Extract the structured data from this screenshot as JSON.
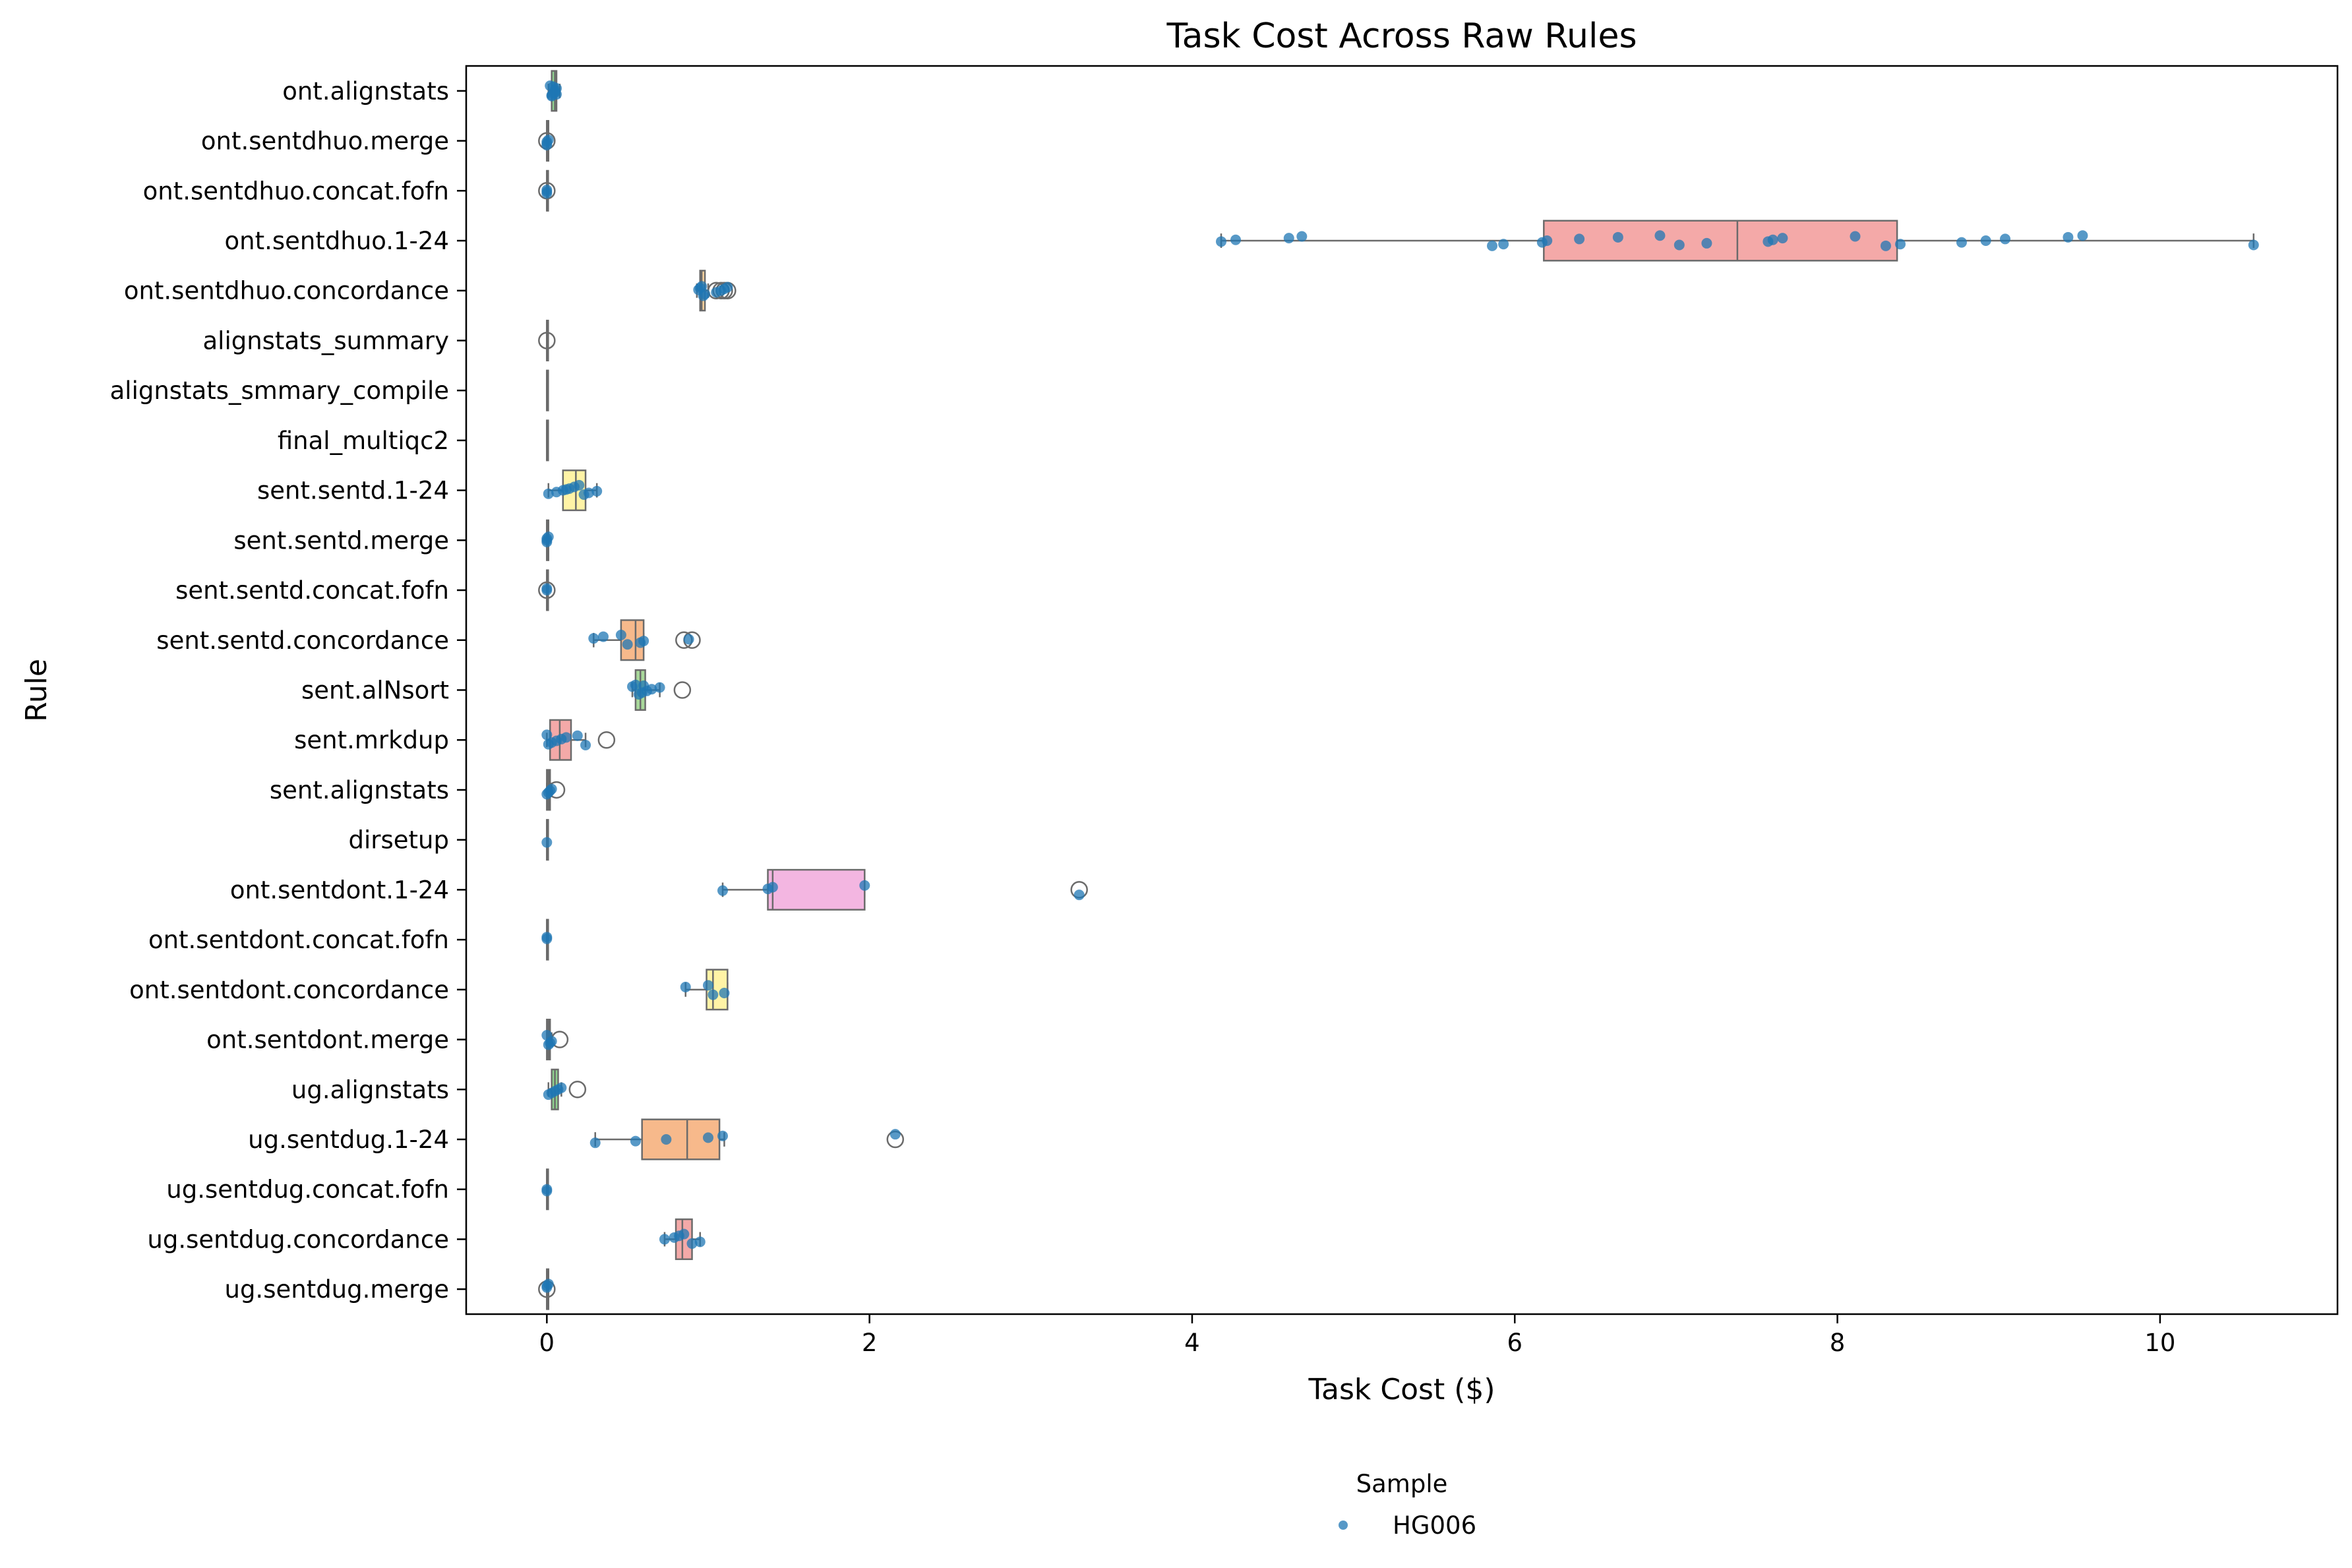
{
  "chart_data": {
    "type": "box",
    "title": "Task Cost Across Raw Rules",
    "xlabel": "Task Cost ($)",
    "ylabel": "Rule",
    "xlim": [
      -0.5,
      11.1
    ],
    "xticks": [
      0,
      2,
      4,
      6,
      8,
      10
    ],
    "grid": false,
    "legend": {
      "title": "Sample",
      "placement": "bottom-center",
      "entries": [
        {
          "name": "HG006",
          "color": "#1f77b4"
        }
      ]
    },
    "categories": [
      "ont.alignstats",
      "ont.sentdhuo.merge",
      "ont.sentdhuo.concat.fofn",
      "ont.sentdhuo.1-24",
      "ont.sentdhuo.concordance",
      "alignstats_summary",
      "alignstats_smmary_compile",
      "final_multiqc2",
      "sent.sentd.1-24",
      "sent.sentd.merge",
      "sent.sentd.concat.fofn",
      "sent.sentd.concordance",
      "sent.alNsort",
      "sent.mrkdup",
      "sent.alignstats",
      "dirsetup",
      "ont.sentdont.1-24",
      "ont.sentdont.concat.fofn",
      "ont.sentdont.concordance",
      "ont.sentdont.merge",
      "ug.alignstats",
      "ug.sentdug.1-24",
      "ug.sentdug.concat.fofn",
      "ug.sentdug.concordance",
      "ug.sentdug.merge"
    ],
    "boxes": [
      {
        "rule": "ont.alignstats",
        "color": "#8fd18f",
        "q1": 0.03,
        "median": 0.05,
        "q3": 0.06,
        "whisker_low": 0.01,
        "whisker_high": 0.08,
        "outliers": []
      },
      {
        "rule": "ont.sentdhuo.merge",
        "color": "#aec7e8",
        "q1": 0.0,
        "median": 0.0,
        "q3": 0.01,
        "whisker_low": 0.0,
        "whisker_high": 0.01,
        "outliers": [
          0.0
        ]
      },
      {
        "rule": "ont.sentdhuo.concat.fofn",
        "color": "#aec7e8",
        "q1": 0.0,
        "median": 0.0,
        "q3": 0.0,
        "whisker_low": 0.0,
        "whisker_high": 0.0,
        "outliers": [
          0.0
        ]
      },
      {
        "rule": "ont.sentdhuo.1-24",
        "color": "#f4a9a8",
        "q1": 6.18,
        "median": 7.38,
        "q3": 8.37,
        "whisker_low": 4.18,
        "whisker_high": 10.58,
        "outliers": []
      },
      {
        "rule": "ont.sentdhuo.concordance",
        "color": "#ffd59e",
        "q1": 0.95,
        "median": 0.96,
        "q3": 0.98,
        "whisker_low": 0.93,
        "whisker_high": 1.0,
        "outliers": [
          1.05,
          1.08,
          1.1,
          1.12
        ]
      },
      {
        "rule": "alignstats_summary",
        "color": "#c5b0d5",
        "q1": 0.0,
        "median": 0.0,
        "q3": 0.0,
        "whisker_low": 0.0,
        "whisker_high": 0.0,
        "outliers": [
          0.0
        ]
      },
      {
        "rule": "alignstats_smmary_compile",
        "color": "#c5b0d5",
        "q1": 0.0,
        "median": 0.0,
        "q3": 0.0,
        "whisker_low": 0.0,
        "whisker_high": 0.0,
        "outliers": []
      },
      {
        "rule": "final_multiqc2",
        "color": "#c5b0d5",
        "q1": 0.0,
        "median": 0.0,
        "q3": 0.0,
        "whisker_low": 0.0,
        "whisker_high": 0.0,
        "outliers": []
      },
      {
        "rule": "sent.sentd.1-24",
        "color": "#fff3a6",
        "q1": 0.1,
        "median": 0.18,
        "q3": 0.24,
        "whisker_low": 0.01,
        "whisker_high": 0.31,
        "outliers": []
      },
      {
        "rule": "sent.sentd.merge",
        "color": "#aec7e8",
        "q1": 0.0,
        "median": 0.0,
        "q3": 0.01,
        "whisker_low": 0.0,
        "whisker_high": 0.01,
        "outliers": []
      },
      {
        "rule": "sent.sentd.concat.fofn",
        "color": "#aec7e8",
        "q1": 0.0,
        "median": 0.0,
        "q3": 0.0,
        "whisker_low": 0.0,
        "whisker_high": 0.0,
        "outliers": [
          0.0
        ]
      },
      {
        "rule": "sent.sentd.concordance",
        "color": "#f7b98b",
        "q1": 0.46,
        "median": 0.55,
        "q3": 0.6,
        "whisker_low": 0.29,
        "whisker_high": 0.6,
        "outliers": [
          0.85,
          0.9
        ]
      },
      {
        "rule": "sent.alNsort",
        "color": "#a8d89a",
        "q1": 0.55,
        "median": 0.58,
        "q3": 0.61,
        "whisker_low": 0.53,
        "whisker_high": 0.7,
        "outliers": [
          0.84
        ]
      },
      {
        "rule": "sent.mrkdup",
        "color": "#f4a9a8",
        "q1": 0.02,
        "median": 0.08,
        "q3": 0.15,
        "whisker_low": 0.0,
        "whisker_high": 0.24,
        "outliers": [
          0.37
        ]
      },
      {
        "rule": "sent.alignstats",
        "color": "#8fd18f",
        "q1": 0.0,
        "median": 0.01,
        "q3": 0.02,
        "whisker_low": 0.0,
        "whisker_high": 0.03,
        "outliers": [
          0.06
        ]
      },
      {
        "rule": "dirsetup",
        "color": "#c5b0d5",
        "q1": 0.0,
        "median": 0.0,
        "q3": 0.0,
        "whisker_low": 0.0,
        "whisker_high": 0.0,
        "outliers": []
      },
      {
        "rule": "ont.sentdont.1-24",
        "color": "#f3b6e1",
        "q1": 1.37,
        "median": 1.4,
        "q3": 1.97,
        "whisker_low": 1.09,
        "whisker_high": 1.97,
        "outliers": [
          3.3
        ]
      },
      {
        "rule": "ont.sentdont.concat.fofn",
        "color": "#aec7e8",
        "q1": 0.0,
        "median": 0.0,
        "q3": 0.0,
        "whisker_low": 0.0,
        "whisker_high": 0.0,
        "outliers": []
      },
      {
        "rule": "ont.sentdont.concordance",
        "color": "#fff3a6",
        "q1": 0.99,
        "median": 1.03,
        "q3": 1.12,
        "whisker_low": 0.86,
        "whisker_high": 1.12,
        "outliers": []
      },
      {
        "rule": "ont.sentdont.merge",
        "color": "#aec7e8",
        "q1": 0.0,
        "median": 0.01,
        "q3": 0.02,
        "whisker_low": 0.0,
        "whisker_high": 0.03,
        "outliers": [
          0.08
        ]
      },
      {
        "rule": "ug.alignstats",
        "color": "#8fd18f",
        "q1": 0.03,
        "median": 0.05,
        "q3": 0.07,
        "whisker_low": 0.01,
        "whisker_high": 0.09,
        "outliers": [
          0.19
        ]
      },
      {
        "rule": "ug.sentdug.1-24",
        "color": "#f7b98b",
        "q1": 0.59,
        "median": 0.87,
        "q3": 1.07,
        "whisker_low": 0.3,
        "whisker_high": 1.1,
        "outliers": [
          2.16
        ]
      },
      {
        "rule": "ug.sentdug.concat.fofn",
        "color": "#aec7e8",
        "q1": 0.0,
        "median": 0.0,
        "q3": 0.0,
        "whisker_low": 0.0,
        "whisker_high": 0.0,
        "outliers": []
      },
      {
        "rule": "ug.sentdug.concordance",
        "color": "#f4a9a8",
        "q1": 0.8,
        "median": 0.84,
        "q3": 0.9,
        "whisker_low": 0.73,
        "whisker_high": 0.95,
        "outliers": []
      },
      {
        "rule": "ug.sentdug.merge",
        "color": "#aec7e8",
        "q1": 0.0,
        "median": 0.0,
        "q3": 0.01,
        "whisker_low": 0.0,
        "whisker_high": 0.01,
        "outliers": [
          0.0
        ]
      }
    ],
    "series": [
      {
        "name": "HG006",
        "color": "#1f77b4",
        "points": {
          "ont.alignstats": [
            0.02,
            0.03,
            0.04,
            0.05,
            0.05,
            0.06,
            0.04,
            0.03,
            0.06,
            0.05
          ],
          "ont.sentdhuo.merge": [
            0.0,
            0.0,
            0.0,
            0.01
          ],
          "ont.sentdhuo.concat.fofn": [
            0.0,
            0.0,
            0.0
          ],
          "ont.sentdhuo.1-24": [
            4.18,
            4.27,
            4.6,
            4.68,
            5.86,
            5.93,
            6.17,
            6.2,
            6.4,
            6.64,
            6.9,
            7.02,
            7.19,
            7.57,
            7.6,
            7.66,
            8.11,
            8.3,
            8.39,
            8.77,
            8.92,
            9.04,
            9.43,
            9.52,
            10.58
          ],
          "ont.sentdhuo.concordance": [
            0.94,
            0.95,
            0.96,
            0.97,
            0.98,
            1.05,
            1.08,
            1.1,
            1.12
          ],
          "alignstats_summary": [],
          "alignstats_smmary_compile": [],
          "final_multiqc2": [],
          "sent.sentd.1-24": [
            0.01,
            0.06,
            0.1,
            0.14,
            0.17,
            0.2,
            0.23,
            0.26,
            0.31,
            0.12
          ],
          "sent.sentd.merge": [
            0.0,
            0.0,
            0.0,
            0.01
          ],
          "sent.sentd.concat.fofn": [
            0.0,
            0.0
          ],
          "sent.sentd.concordance": [
            0.29,
            0.35,
            0.46,
            0.5,
            0.58,
            0.6,
            0.88
          ],
          "sent.alNsort": [
            0.53,
            0.55,
            0.57,
            0.59,
            0.62,
            0.65,
            0.7,
            0.6
          ],
          "sent.mrkdup": [
            0.0,
            0.01,
            0.03,
            0.06,
            0.09,
            0.12,
            0.19,
            0.24
          ],
          "sent.alignstats": [
            0.0,
            0.01,
            0.02,
            0.03
          ],
          "dirsetup": [
            0.0
          ],
          "ont.sentdont.1-24": [
            1.09,
            1.37,
            1.4,
            1.97,
            3.3
          ],
          "ont.sentdont.concat.fofn": [
            0.0,
            0.0
          ],
          "ont.sentdont.concordance": [
            0.86,
            1.0,
            1.03,
            1.1
          ],
          "ont.sentdont.merge": [
            0.0,
            0.01,
            0.02,
            0.03
          ],
          "ug.alignstats": [
            0.01,
            0.03,
            0.05,
            0.07,
            0.09
          ],
          "ug.sentdug.1-24": [
            0.3,
            0.55,
            0.74,
            1.0,
            1.09,
            2.16
          ],
          "ug.sentdug.concat.fofn": [
            0.0,
            0.0
          ],
          "ug.sentdug.concordance": [
            0.73,
            0.79,
            0.82,
            0.85,
            0.9,
            0.95
          ],
          "ug.sentdug.merge": [
            0.0,
            0.0,
            0.01
          ]
        }
      }
    ]
  }
}
